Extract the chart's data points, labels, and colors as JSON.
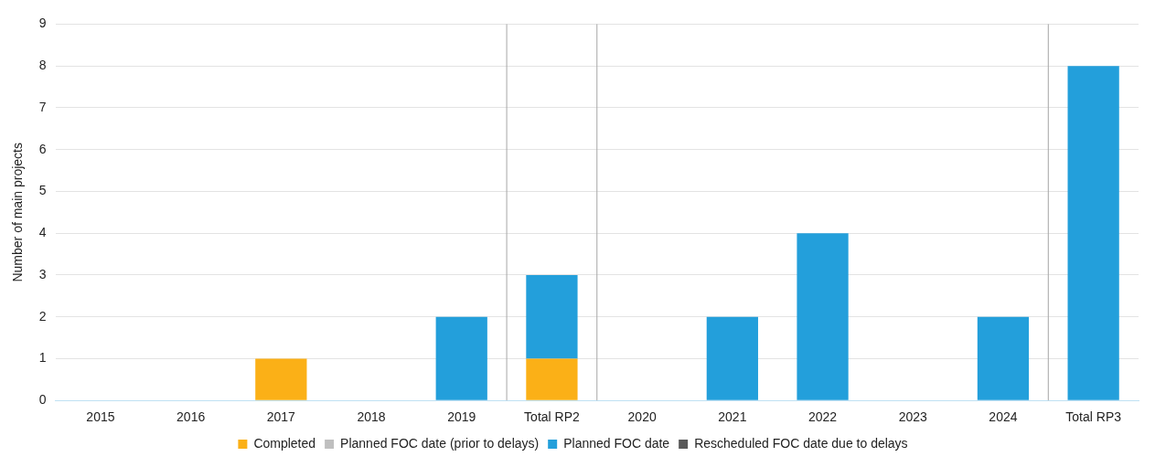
{
  "chart_data": {
    "type": "bar",
    "stacked": true,
    "ylabel": "Number of main projects",
    "categories": [
      "2015",
      "2016",
      "2017",
      "2018",
      "2019",
      "Total RP2",
      "2020",
      "2021",
      "2022",
      "2023",
      "2024",
      "Total RP3"
    ],
    "series": [
      {
        "name": "Completed",
        "color": "#fbb017",
        "values": [
          0,
          0,
          1,
          0,
          0,
          1,
          0,
          0,
          0,
          0,
          0,
          0
        ]
      },
      {
        "name": "Planned FOC date (prior to delays)",
        "color": "#bfbfbf",
        "values": [
          0,
          0,
          0,
          0,
          0,
          0,
          0,
          0,
          0,
          0,
          0,
          0
        ]
      },
      {
        "name": "Planned FOC date",
        "color": "#239fdb",
        "values": [
          0,
          0,
          0,
          0,
          2,
          2,
          0,
          2,
          4,
          0,
          2,
          8
        ]
      },
      {
        "name": "Rescheduled FOC date due to delays",
        "color": "#595959",
        "values": [
          0,
          0,
          0,
          0,
          0,
          0,
          0,
          0,
          0,
          0,
          0,
          0
        ]
      }
    ],
    "ylim": [
      0,
      9
    ],
    "yticks": [
      0,
      1,
      2,
      3,
      4,
      5,
      6,
      7,
      8,
      9
    ],
    "grid": "y",
    "legend": "bottom"
  }
}
